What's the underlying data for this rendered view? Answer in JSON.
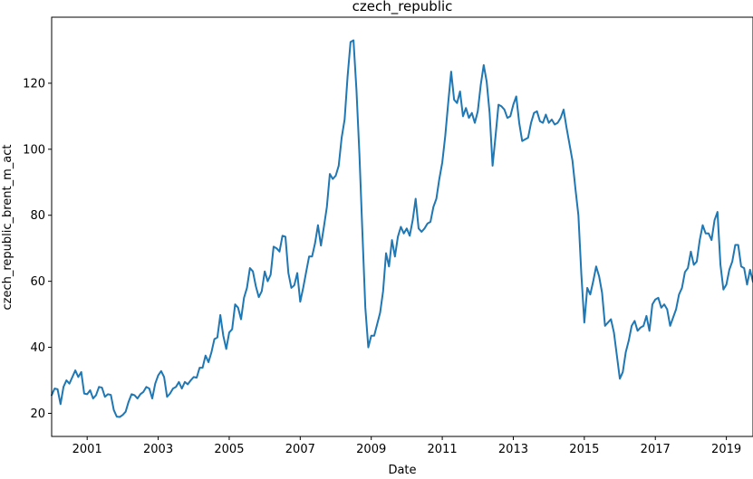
{
  "chart_data": {
    "type": "line",
    "title": "czech_republic",
    "xlabel": "Date",
    "ylabel": "czech_republic_brent_m_act",
    "xlim": [
      "2000-01",
      "2019-10"
    ],
    "ylim": [
      13,
      140
    ],
    "grid": false,
    "line_color": "#1f77b4",
    "x_tick_labels": [
      "2001",
      "2003",
      "2005",
      "2007",
      "2009",
      "2011",
      "2013",
      "2015",
      "2017",
      "2019"
    ],
    "y_tick_labels": [
      "20",
      "40",
      "60",
      "80",
      "100",
      "120"
    ],
    "series": [
      {
        "x": [
          "2000-01",
          "2000-02",
          "2000-03",
          "2000-04",
          "2000-05",
          "2000-06",
          "2000-07",
          "2000-08",
          "2000-09",
          "2000-10",
          "2000-11",
          "2000-12",
          "2001-01",
          "2001-02",
          "2001-03",
          "2001-04",
          "2001-05",
          "2001-06",
          "2001-07",
          "2001-08",
          "2001-09",
          "2001-10",
          "2001-11",
          "2001-12",
          "2002-01",
          "2002-02",
          "2002-03",
          "2002-04",
          "2002-05",
          "2002-06",
          "2002-07",
          "2002-08",
          "2002-09",
          "2002-10",
          "2002-11",
          "2002-12",
          "2003-01",
          "2003-02",
          "2003-03",
          "2003-04",
          "2003-05",
          "2003-06",
          "2003-07",
          "2003-08",
          "2003-09",
          "2003-10",
          "2003-11",
          "2003-12",
          "2004-01",
          "2004-02",
          "2004-03",
          "2004-04",
          "2004-05",
          "2004-06",
          "2004-07",
          "2004-08",
          "2004-09",
          "2004-10",
          "2004-11",
          "2004-12",
          "2005-01",
          "2005-02",
          "2005-03",
          "2005-04",
          "2005-05",
          "2005-06",
          "2005-07",
          "2005-08",
          "2005-09",
          "2005-10",
          "2005-11",
          "2005-12",
          "2006-01",
          "2006-02",
          "2006-03",
          "2006-04",
          "2006-05",
          "2006-06",
          "2006-07",
          "2006-08",
          "2006-09",
          "2006-10",
          "2006-11",
          "2006-12",
          "2007-01",
          "2007-02",
          "2007-03",
          "2007-04",
          "2007-05",
          "2007-06",
          "2007-07",
          "2007-08",
          "2007-09",
          "2007-10",
          "2007-11",
          "2007-12",
          "2008-01",
          "2008-02",
          "2008-03",
          "2008-04",
          "2008-05",
          "2008-06",
          "2008-07",
          "2008-08",
          "2008-09",
          "2008-10",
          "2008-11",
          "2008-12",
          "2009-01",
          "2009-02",
          "2009-03",
          "2009-04",
          "2009-05",
          "2009-06",
          "2009-07",
          "2009-08",
          "2009-09",
          "2009-10",
          "2009-11",
          "2009-12",
          "2010-01",
          "2010-02",
          "2010-03",
          "2010-04",
          "2010-05",
          "2010-06",
          "2010-07",
          "2010-08",
          "2010-09",
          "2010-10",
          "2010-11",
          "2010-12",
          "2011-01",
          "2011-02",
          "2011-03",
          "2011-04",
          "2011-05",
          "2011-06",
          "2011-07",
          "2011-08",
          "2011-09",
          "2011-10",
          "2011-11",
          "2011-12",
          "2012-01",
          "2012-02",
          "2012-03",
          "2012-04",
          "2012-05",
          "2012-06",
          "2012-07",
          "2012-08",
          "2012-09",
          "2012-10",
          "2012-11",
          "2012-12",
          "2013-01",
          "2013-02",
          "2013-03",
          "2013-04",
          "2013-05",
          "2013-06",
          "2013-07",
          "2013-08",
          "2013-09",
          "2013-10",
          "2013-11",
          "2013-12",
          "2014-01",
          "2014-02",
          "2014-03",
          "2014-04",
          "2014-05",
          "2014-06",
          "2014-07",
          "2014-08",
          "2014-09",
          "2014-10",
          "2014-11",
          "2014-12",
          "2015-01",
          "2015-02",
          "2015-03",
          "2015-04",
          "2015-05",
          "2015-06",
          "2015-07",
          "2015-08",
          "2015-09",
          "2015-10",
          "2015-11",
          "2015-12",
          "2016-01",
          "2016-02",
          "2016-03",
          "2016-04",
          "2016-05",
          "2016-06",
          "2016-07",
          "2016-08",
          "2016-09",
          "2016-10",
          "2016-11",
          "2016-12",
          "2017-01",
          "2017-02",
          "2017-03",
          "2017-04",
          "2017-05",
          "2017-06",
          "2017-07",
          "2017-08",
          "2017-09",
          "2017-10",
          "2017-11",
          "2017-12",
          "2018-01",
          "2018-02",
          "2018-03",
          "2018-04",
          "2018-05",
          "2018-06",
          "2018-07",
          "2018-08",
          "2018-09",
          "2018-10",
          "2018-11",
          "2018-12",
          "2019-01",
          "2019-02",
          "2019-03",
          "2019-04",
          "2019-05",
          "2019-06",
          "2019-07",
          "2019-08",
          "2019-09",
          "2019-10"
        ],
        "values": [
          25.5,
          27.5,
          27.3,
          22.8,
          28.0,
          30.0,
          29.0,
          31.0,
          33.0,
          31.0,
          32.5,
          26.0,
          25.8,
          27.0,
          24.5,
          25.5,
          28.0,
          27.8,
          25.0,
          25.8,
          25.6,
          21.0,
          19.0,
          18.9,
          19.5,
          20.5,
          23.5,
          25.8,
          25.5,
          24.5,
          25.8,
          26.5,
          28.0,
          27.5,
          24.5,
          29.0,
          31.5,
          32.8,
          31.0,
          25.0,
          26.0,
          27.5,
          28.0,
          29.5,
          27.5,
          29.5,
          28.8,
          30.0,
          31.0,
          30.8,
          33.8,
          33.8,
          37.5,
          35.5,
          38.5,
          42.5,
          43.0,
          49.8,
          43.5,
          39.5,
          44.5,
          45.5,
          53.0,
          52.0,
          48.5,
          55.0,
          58.0,
          64.0,
          63.0,
          58.5,
          55.2,
          57.0,
          63.0,
          60.0,
          62.0,
          70.5,
          70.0,
          69.0,
          73.8,
          73.5,
          62.5,
          58.0,
          58.8,
          62.5,
          53.8,
          58.0,
          62.8,
          67.5,
          67.5,
          71.5,
          77.0,
          70.8,
          76.5,
          82.5,
          92.5,
          91.0,
          92.0,
          95.0,
          103.5,
          109.0,
          122.0,
          132.5,
          133.0,
          118.0,
          98.5,
          75.0,
          52.0,
          40.0,
          43.5,
          43.5,
          47.0,
          50.5,
          57.0,
          68.5,
          64.5,
          72.5,
          67.5,
          73.5,
          76.5,
          74.5,
          76.0,
          73.8,
          78.5,
          85.0,
          76.0,
          75.0,
          76.0,
          77.5,
          78.0,
          82.5,
          85.0,
          91.0,
          96.0,
          104.0,
          114.0,
          123.5,
          115.0,
          114.0,
          117.5,
          110.0,
          112.5,
          109.5,
          111.0,
          108.0,
          111.5,
          119.5,
          125.5,
          120.5,
          111.0,
          95.0,
          104.0,
          113.5,
          113.0,
          112.0,
          109.5,
          110.0,
          113.5,
          116.0,
          108.0,
          102.5,
          103.0,
          103.5,
          108.0,
          111.0,
          111.5,
          108.5,
          108.0,
          110.5,
          108.0,
          109.0,
          107.5,
          108.0,
          109.5,
          112.0,
          106.5,
          101.5,
          96.5,
          88.0,
          80.0,
          62.0,
          47.5,
          58.0,
          56.0,
          60.0,
          64.5,
          61.5,
          56.5,
          46.5,
          47.5,
          48.5,
          44.5,
          37.5,
          30.5,
          32.5,
          38.5,
          42.0,
          46.5,
          48.0,
          45.0,
          46.0,
          46.5,
          49.5,
          45.0,
          53.0,
          54.5,
          55.0,
          52.0,
          53.0,
          51.5,
          46.5,
          49.0,
          51.5,
          56.0,
          58.0,
          62.8,
          64.0,
          69.0,
          65.0,
          66.0,
          72.5,
          77.0,
          74.5,
          74.5,
          72.5,
          78.5,
          81.0,
          65.0,
          57.5,
          59.0,
          63.5,
          66.0,
          71.0,
          71.0,
          64.5,
          64.0,
          59.0,
          63.5,
          59.8
        ]
      }
    ]
  }
}
